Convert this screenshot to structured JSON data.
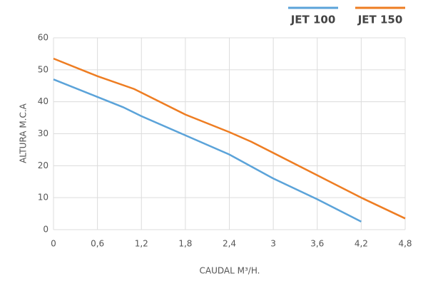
{
  "chart_data": {
    "type": "line",
    "xlabel": "CAUDAL M³/H.",
    "ylabel": "ALTURA M.C.A",
    "xlim": [
      0,
      4.8
    ],
    "ylim": [
      0,
      60
    ],
    "xticks": [
      0,
      {
        "value": 0.6,
        "label": "0,6"
      },
      {
        "value": 1.2,
        "label": "1,2"
      },
      {
        "value": 1.8,
        "label": "1,8"
      },
      {
        "value": 2.4,
        "label": "2,4"
      },
      3,
      {
        "value": 3.6,
        "label": "3,6"
      },
      {
        "value": 4.2,
        "label": "4,2"
      },
      {
        "value": 4.8,
        "label": "4,8"
      }
    ],
    "yticks": [
      0,
      10,
      20,
      30,
      40,
      50,
      60
    ],
    "grid": true,
    "legend": "top-right",
    "series": [
      {
        "name": "JET 100",
        "color": "#5ba3d9",
        "x": [
          0,
          0.6,
          0.95,
          1.2,
          1.8,
          2.4,
          3,
          3.6,
          4.2
        ],
        "values": [
          47,
          41.5,
          38.3,
          35.5,
          29.5,
          23.5,
          16,
          9.5,
          2.5
        ]
      },
      {
        "name": "JET 150",
        "color": "#ee7d22",
        "x": [
          0,
          0.6,
          1.1,
          1.8,
          2.4,
          2.7,
          3.6,
          4.2,
          4.8
        ],
        "values": [
          53.5,
          48,
          44,
          36,
          30.5,
          27.5,
          17,
          10,
          3.5
        ]
      }
    ]
  }
}
